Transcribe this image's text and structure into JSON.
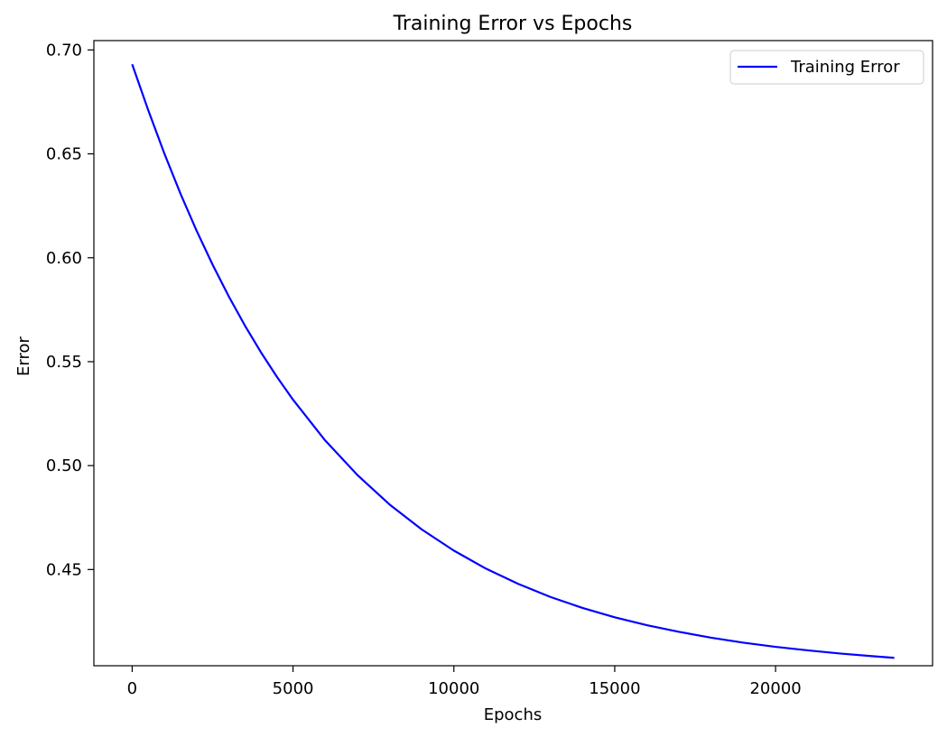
{
  "chart_data": {
    "type": "line",
    "title": "Training Error vs Epochs",
    "xlabel": "Epochs",
    "ylabel": "Error",
    "xlim": [
      -1190,
      24880
    ],
    "ylim": [
      0.4037,
      0.7045
    ],
    "xticks": [
      0,
      5000,
      10000,
      15000,
      20000
    ],
    "xtick_labels": [
      "0",
      "5000",
      "10000",
      "15000",
      "20000"
    ],
    "yticks": [
      0.45,
      0.5,
      0.55,
      0.6,
      0.65,
      0.7
    ],
    "ytick_labels": [
      "0.45",
      "0.50",
      "0.55",
      "0.60",
      "0.65",
      "0.70"
    ],
    "grid": false,
    "legend": {
      "placement": "top-right",
      "entries": [
        "Training Error"
      ]
    },
    "series": [
      {
        "name": "Training Error",
        "color": "#0000ff",
        "x": [
          0,
          500,
          1000,
          1500,
          2000,
          2500,
          3000,
          3500,
          4000,
          4500,
          5000,
          6000,
          7000,
          8000,
          9000,
          10000,
          11000,
          12000,
          13000,
          14000,
          15000,
          16000,
          17000,
          18000,
          19000,
          20000,
          21000,
          22000,
          23000,
          23690
        ],
        "y": [
          0.6931,
          0.671,
          0.6502,
          0.6309,
          0.6131,
          0.5967,
          0.5815,
          0.5675,
          0.5546,
          0.5427,
          0.5317,
          0.5121,
          0.4955,
          0.4813,
          0.4693,
          0.4591,
          0.4504,
          0.4431,
          0.4368,
          0.4315,
          0.427,
          0.4232,
          0.42,
          0.4172,
          0.4148,
          0.4128,
          0.4111,
          0.4096,
          0.4083,
          0.4075
        ]
      }
    ]
  }
}
